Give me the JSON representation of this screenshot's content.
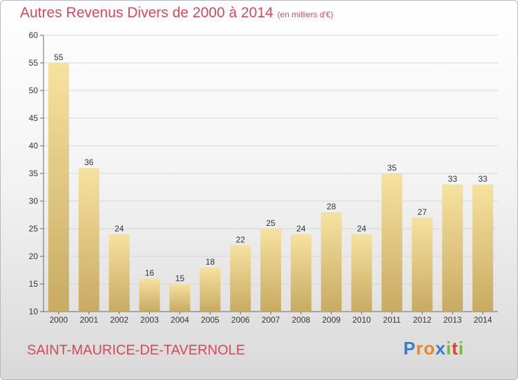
{
  "header": {
    "title": "Autres Revenus Divers de 2000 à 2014",
    "unit": "(en milliers d'€)"
  },
  "footer": {
    "town": "SAINT-MAURICE-DE-TAVERNOLE",
    "brand": [
      "P",
      "r",
      "o",
      "x",
      "i",
      "t",
      "i"
    ],
    "brand_colors": [
      "#3a7bc8",
      "#e8862a",
      "#e8862a",
      "#3a7bc8",
      "#7cb342",
      "#e53935",
      "#7cb342"
    ]
  },
  "colors": {
    "title": "#d44a5a",
    "bar_top": "#f6e29f",
    "bar_bottom": "#c8aa62",
    "grid": "#d6d6d6",
    "axis": "#666666",
    "label": "#333333"
  },
  "chart_data": {
    "type": "bar",
    "categories": [
      "2000",
      "2001",
      "2002",
      "2003",
      "2004",
      "2005",
      "2006",
      "2007",
      "2008",
      "2009",
      "2010",
      "2011",
      "2012",
      "2013",
      "2014"
    ],
    "values": [
      55,
      36,
      24,
      16,
      15,
      18,
      22,
      25,
      24,
      28,
      24,
      35,
      27,
      33,
      33
    ],
    "yticks": [
      10,
      15,
      20,
      25,
      30,
      35,
      40,
      45,
      50,
      55,
      60
    ],
    "ylim": [
      10,
      60
    ],
    "grid": true,
    "data_labels": true
  }
}
